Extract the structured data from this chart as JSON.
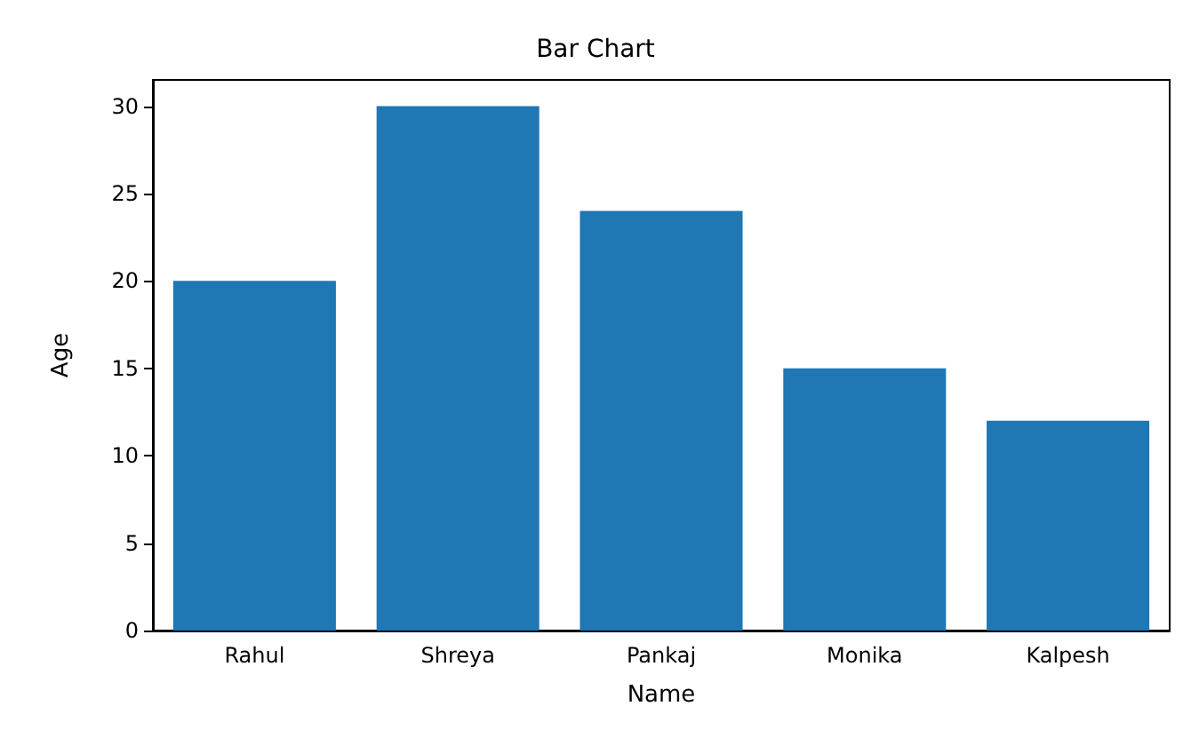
{
  "chart_data": {
    "type": "bar",
    "title": "Bar Chart",
    "xlabel": "Name",
    "ylabel": "Age",
    "categories": [
      "Rahul",
      "Shreya",
      "Pankaj",
      "Monika",
      "Kalpesh"
    ],
    "values": [
      20,
      30,
      24,
      15,
      12
    ],
    "color": "#1f77b4",
    "ylim": [
      0,
      31.5
    ],
    "yticks": [
      0,
      5,
      10,
      15,
      20,
      25,
      30
    ],
    "grid": false
  }
}
